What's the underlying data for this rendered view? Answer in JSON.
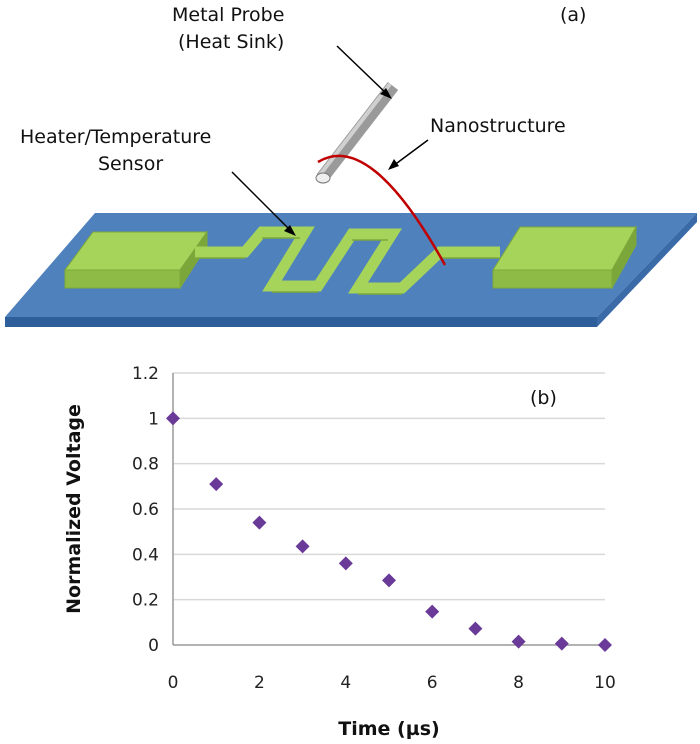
{
  "diagram": {
    "panel_label": "(a)",
    "probe_label_line1": "Metal Probe",
    "probe_label_line2": "(Heat Sink)",
    "nanostructure_label": "Nanostructure",
    "heater_label_line1": "Heater/Temperature",
    "heater_label_line2": "Sensor",
    "colors": {
      "substrate": "#4f81bd",
      "heater": "#a6d45a",
      "probe": "#8c8c8c",
      "nanostructure": "#c00000"
    }
  },
  "chart_data": {
    "type": "scatter",
    "panel_label": "(b)",
    "xlabel": "Time (µs)",
    "ylabel": "Normalized Voltage",
    "xlim": [
      0,
      10
    ],
    "ylim": [
      0,
      1.2
    ],
    "xticks": [
      0,
      2,
      4,
      6,
      8,
      10
    ],
    "yticks": [
      0,
      0.2,
      0.4,
      0.6,
      0.8,
      1,
      1.2
    ],
    "ytick_labels": [
      "0",
      "0.2",
      "0.4",
      "0.6",
      "0.8",
      "1",
      "1.2"
    ],
    "grid": "horizontal",
    "marker": "diamond",
    "color": "#6a3a98",
    "x": [
      0,
      1,
      2,
      3,
      4,
      5,
      6,
      7,
      8,
      9,
      10
    ],
    "y": [
      1.0,
      0.71,
      0.54,
      0.435,
      0.36,
      0.285,
      0.147,
      0.072,
      0.015,
      0.006,
      0.0
    ]
  }
}
